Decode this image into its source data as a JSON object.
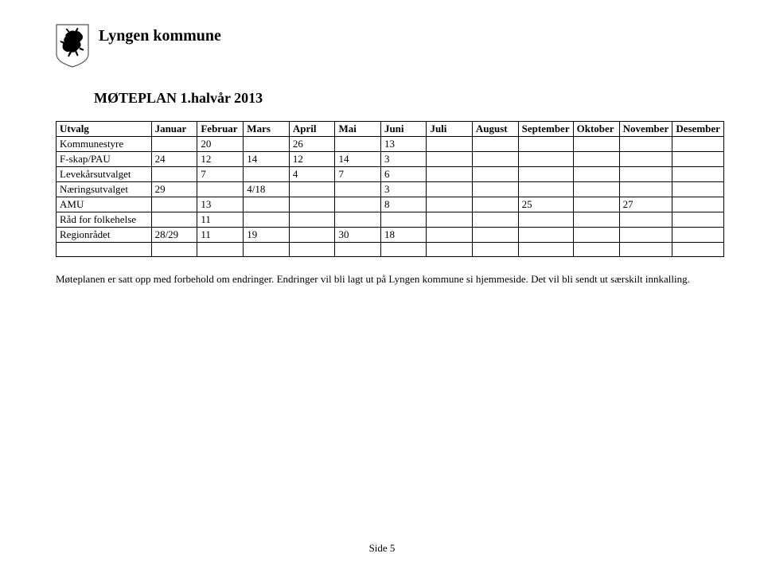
{
  "header": {
    "org_name": "Lyngen kommune"
  },
  "subtitle": "MØTEPLAN 1.halvår 2013",
  "table": {
    "columns": [
      "Utvalg",
      "Januar",
      "Februar",
      "Mars",
      "April",
      "Mai",
      "Juni",
      "Juli",
      "August",
      "September",
      "Oktober",
      "November",
      "Desember"
    ],
    "rows": [
      [
        "Kommunestyre",
        "",
        "20",
        "",
        "26",
        "",
        "13",
        "",
        "",
        "",
        "",
        "",
        ""
      ],
      [
        "F-skap/PAU",
        "24",
        "12",
        "14",
        "12",
        "14",
        "3",
        "",
        "",
        "",
        "",
        "",
        ""
      ],
      [
        "Levekårsutvalget",
        "",
        "7",
        "",
        "4",
        "7",
        "6",
        "",
        "",
        "",
        "",
        "",
        ""
      ],
      [
        "Næringsutvalget",
        "29",
        "",
        "4/18",
        "",
        "",
        "3",
        "",
        "",
        "",
        "",
        "",
        ""
      ],
      [
        "AMU",
        "",
        "13",
        "",
        "",
        "",
        "8",
        "",
        "",
        "25",
        "",
        "27",
        ""
      ],
      [
        "Råd for folkehelse",
        "",
        "11",
        "",
        "",
        "",
        "",
        "",
        "",
        "",
        "",
        "",
        ""
      ],
      [
        "Regionrådet",
        "28/29",
        "11",
        "19",
        "",
        "30",
        "18",
        "",
        "",
        "",
        "",
        "",
        ""
      ],
      [
        "",
        "",
        "",
        "",
        "",
        "",
        "",
        "",
        "",
        "",
        "",
        "",
        ""
      ]
    ]
  },
  "footnote": "Møteplanen er satt opp med forbehold om endringer. Endringer vil bli lagt ut på Lyngen kommune si hjemmeside. Det vil bli sendt ut særskilt innkalling.",
  "page_number": "Side 5",
  "styling": {
    "page_bg": "#ffffff",
    "text_color": "#000000",
    "border_color": "#000000",
    "font_family": "Times New Roman",
    "title_fontsize": 20,
    "subtitle_fontsize": 18,
    "table_fontsize": 13,
    "footnote_fontsize": 13
  }
}
